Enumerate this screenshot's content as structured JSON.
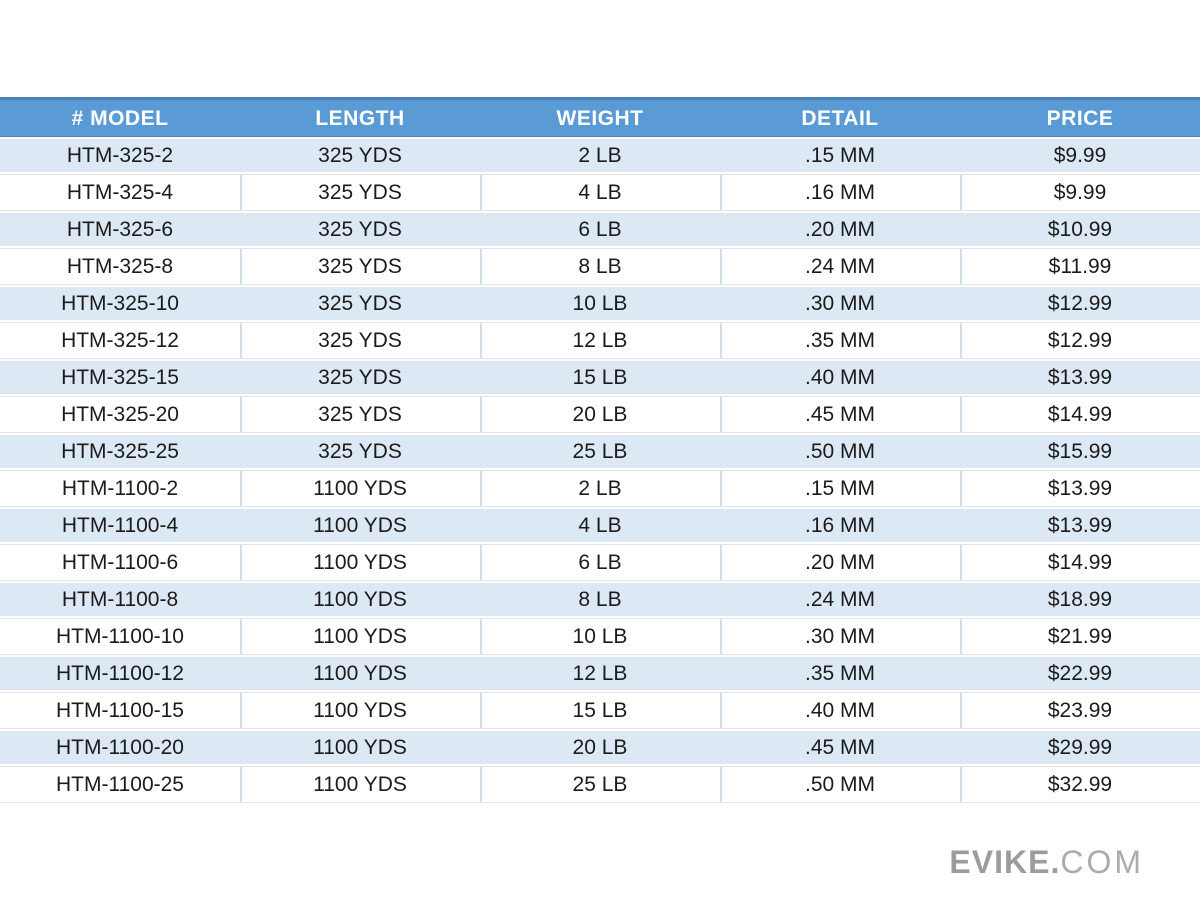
{
  "chart_data": {
    "type": "table",
    "columns": [
      "# MODEL",
      "LENGTH",
      "WEIGHT",
      "DETAIL",
      "PRICE"
    ],
    "rows": [
      [
        "HTM-325-2",
        "325 YDS",
        "2 LB",
        ".15 MM",
        "$9.99"
      ],
      [
        "HTM-325-4",
        "325 YDS",
        "4 LB",
        ".16 MM",
        "$9.99"
      ],
      [
        "HTM-325-6",
        "325 YDS",
        "6 LB",
        ".20 MM",
        "$10.99"
      ],
      [
        "HTM-325-8",
        "325 YDS",
        "8 LB",
        ".24 MM",
        "$11.99"
      ],
      [
        "HTM-325-10",
        "325 YDS",
        "10 LB",
        ".30 MM",
        "$12.99"
      ],
      [
        "HTM-325-12",
        "325 YDS",
        "12 LB",
        ".35 MM",
        "$12.99"
      ],
      [
        "HTM-325-15",
        "325 YDS",
        "15 LB",
        ".40 MM",
        "$13.99"
      ],
      [
        "HTM-325-20",
        "325 YDS",
        "20 LB",
        ".45 MM",
        "$14.99"
      ],
      [
        "HTM-325-25",
        "325 YDS",
        "25 LB",
        ".50 MM",
        "$15.99"
      ],
      [
        "HTM-1100-2",
        "1100 YDS",
        "2 LB",
        ".15 MM",
        "$13.99"
      ],
      [
        "HTM-1100-4",
        "1100 YDS",
        "4 LB",
        ".16 MM",
        "$13.99"
      ],
      [
        "HTM-1100-6",
        "1100 YDS",
        "6 LB",
        ".20 MM",
        "$14.99"
      ],
      [
        "HTM-1100-8",
        "1100 YDS",
        "8 LB",
        ".24 MM",
        "$18.99"
      ],
      [
        "HTM-1100-10",
        "1100 YDS",
        "10 LB",
        ".30 MM",
        "$21.99"
      ],
      [
        "HTM-1100-12",
        "1100 YDS",
        "12 LB",
        ".35 MM",
        "$22.99"
      ],
      [
        "HTM-1100-15",
        "1100 YDS",
        "15 LB",
        ".40 MM",
        "$23.99"
      ],
      [
        "HTM-1100-20",
        "1100 YDS",
        "20 LB",
        ".45 MM",
        "$29.99"
      ],
      [
        "HTM-1100-25",
        "1100 YDS",
        "25 LB",
        ".50 MM",
        "$32.99"
      ]
    ]
  },
  "branding": {
    "brand": "EVIKE.",
    "tld": "COM"
  },
  "colors": {
    "header_bg": "#5b9bd5",
    "header_border": "#4d83b8",
    "header_text": "#ffffff",
    "row_band_bg": "#dce8f4",
    "row_white_bg": "#ffffff",
    "grid_vertical_line": "#cfdded",
    "body_text": "#1b1b1b",
    "logo_gray_bold": "#9c9c9c",
    "logo_gray_thin": "#ababab"
  }
}
